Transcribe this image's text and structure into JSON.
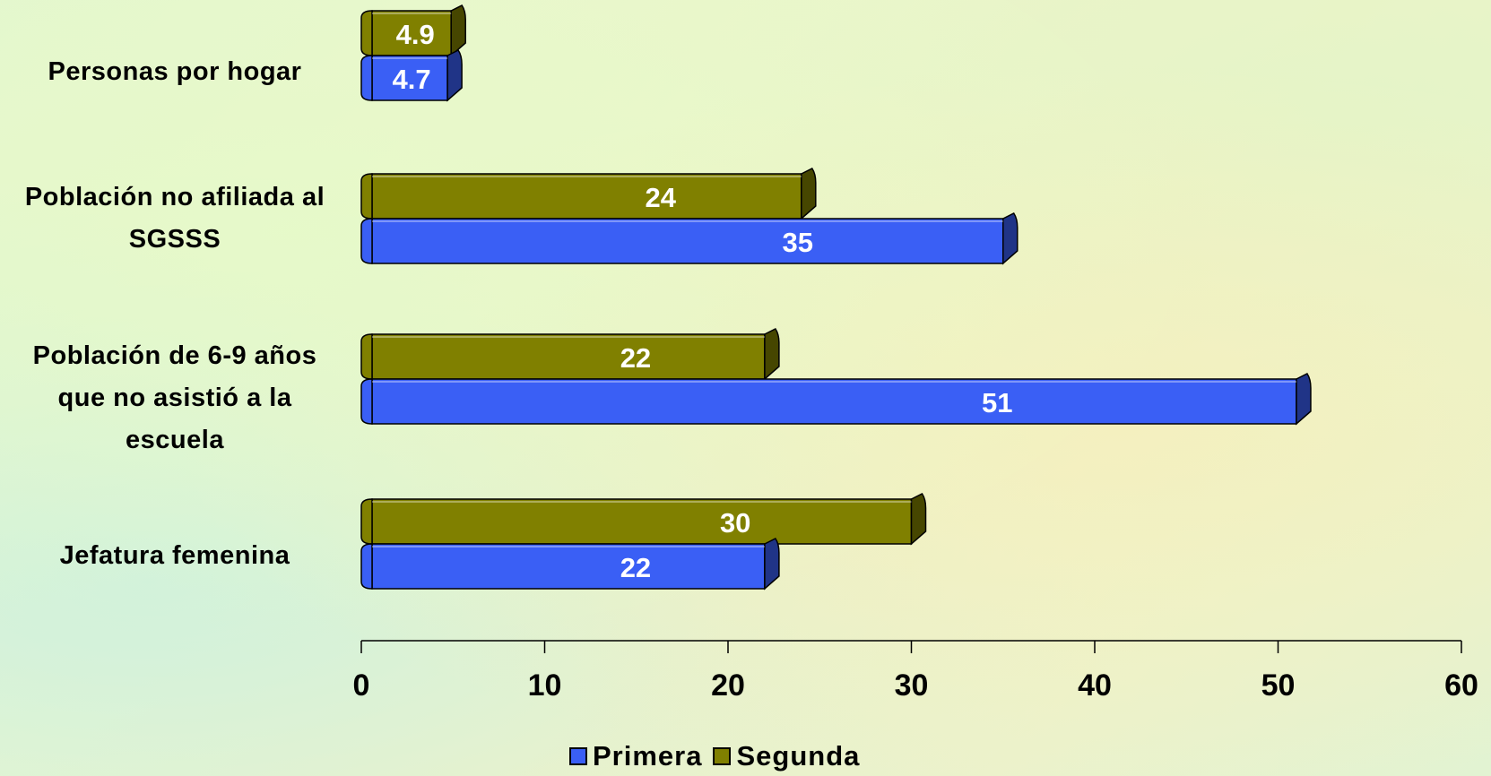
{
  "chart_data": {
    "type": "bar",
    "orientation": "horizontal",
    "categories": [
      "Personas por hogar",
      "Población no afiliada al\nSGSSS",
      "Población de 6-9 años\nque no asistió a la\nescuela",
      "Jefatura femenina"
    ],
    "series": [
      {
        "name": "Primera",
        "color": "#3a5ff5",
        "values": [
          4.7,
          35,
          51,
          22
        ],
        "labels": [
          "4.7",
          "35",
          "51",
          "22"
        ]
      },
      {
        "name": "Segunda",
        "color": "#808000",
        "values": [
          4.9,
          24,
          22,
          30
        ],
        "labels": [
          "4.9",
          "24",
          "22",
          "30"
        ]
      }
    ],
    "xlim": [
      0,
      60
    ],
    "xticks": [
      "0",
      "10",
      "20",
      "30",
      "40",
      "50",
      "60"
    ],
    "legend_position": "bottom",
    "grid": false
  }
}
